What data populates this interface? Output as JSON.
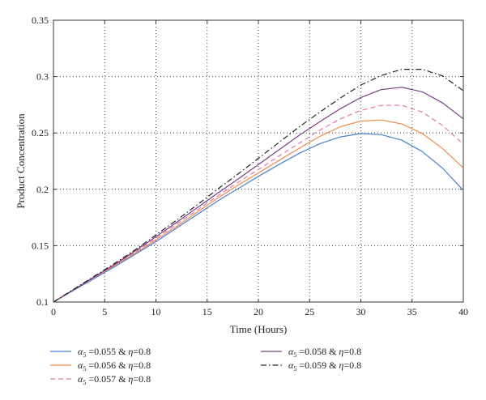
{
  "chart_data": {
    "type": "line",
    "title": "",
    "xlabel": "Time (Hours)",
    "ylabel": "Product Concentration",
    "xlim": [
      0,
      40
    ],
    "ylim": [
      0.1,
      0.35
    ],
    "xticks": [
      0,
      5,
      10,
      15,
      20,
      25,
      30,
      35,
      40
    ],
    "yticks": [
      0.1,
      0.15,
      0.2,
      0.25,
      0.3,
      0.35
    ],
    "xtick_labels": [
      "0",
      "5",
      "10",
      "15",
      "20",
      "25",
      "30",
      "35",
      "40"
    ],
    "ytick_labels": [
      "0.1",
      "0.15",
      "0.2",
      "0.25",
      "0.3",
      "0.35"
    ],
    "grid": true,
    "legend_position": "bottom",
    "series": [
      {
        "name": "α5 =0.055 & η=0.8",
        "legend": {
          "var": "α",
          "sub": "5",
          "rest": " =0.055 & ",
          "eta": "η",
          "eta_rest": "=0.8"
        },
        "color": "#4a80d0",
        "dash": "solid",
        "x": [
          0,
          2,
          4,
          6,
          8,
          10,
          12,
          14,
          16,
          18,
          20,
          22,
          24,
          26,
          28,
          30,
          32,
          34,
          36,
          38,
          40
        ],
        "y": [
          0.1,
          0.1105,
          0.121,
          0.1315,
          0.1425,
          0.1535,
          0.1655,
          0.1775,
          0.1895,
          0.2005,
          0.2115,
          0.222,
          0.232,
          0.2405,
          0.2465,
          0.2495,
          0.2485,
          0.2435,
          0.2335,
          0.2185,
          0.199
        ]
      },
      {
        "name": "α5 =0.056 & η=0.8",
        "legend": {
          "var": "α",
          "sub": "5",
          "rest": " =0.056 & ",
          "eta": "η",
          "eta_rest": "=0.8"
        },
        "color": "#f08a4b",
        "dash": "solid",
        "x": [
          0,
          2,
          4,
          6,
          8,
          10,
          12,
          14,
          16,
          18,
          20,
          22,
          24,
          26,
          28,
          30,
          32,
          34,
          36,
          38,
          40
        ],
        "y": [
          0.1,
          0.111,
          0.122,
          0.1325,
          0.1435,
          0.155,
          0.167,
          0.1795,
          0.192,
          0.2035,
          0.2145,
          0.2255,
          0.2365,
          0.247,
          0.2555,
          0.2605,
          0.2615,
          0.258,
          0.2495,
          0.236,
          0.219
        ]
      },
      {
        "name": "α5 =0.057 & η=0.8",
        "legend": {
          "var": "α",
          "sub": "5",
          "rest": " =0.057 & ",
          "eta": "η",
          "eta_rest": "=0.8"
        },
        "color": "#e07aa8",
        "dash": "dashed",
        "x": [
          0,
          2,
          4,
          6,
          8,
          10,
          12,
          14,
          16,
          18,
          20,
          22,
          24,
          26,
          28,
          30,
          32,
          34,
          36,
          38,
          40
        ],
        "y": [
          0.1,
          0.111,
          0.122,
          0.133,
          0.1445,
          0.1565,
          0.169,
          0.1815,
          0.194,
          0.206,
          0.2175,
          0.2295,
          0.241,
          0.2525,
          0.2625,
          0.27,
          0.2745,
          0.2745,
          0.2685,
          0.2565,
          0.24
        ]
      },
      {
        "name": "α5 =0.058 & η=0.8",
        "legend": {
          "var": "α",
          "sub": "5",
          "rest": " =0.058 & ",
          "eta": "η",
          "eta_rest": "=0.8"
        },
        "color": "#7b3e87",
        "dash": "solid",
        "x": [
          0,
          2,
          4,
          6,
          8,
          10,
          12,
          14,
          16,
          18,
          20,
          22,
          24,
          26,
          28,
          30,
          32,
          34,
          36,
          38,
          40
        ],
        "y": [
          0.1,
          0.111,
          0.1225,
          0.1335,
          0.1455,
          0.158,
          0.1705,
          0.1835,
          0.1965,
          0.209,
          0.222,
          0.235,
          0.248,
          0.26,
          0.2715,
          0.2815,
          0.2885,
          0.2905,
          0.2865,
          0.2765,
          0.2625
        ]
      },
      {
        "name": "α5 =0.059 & η=0.8",
        "legend": {
          "var": "α",
          "sub": "5",
          "rest": " =0.059 & ",
          "eta": "η",
          "eta_rest": "=0.8"
        },
        "color": "#222222",
        "dash": "dashdot",
        "x": [
          0,
          2,
          4,
          6,
          8,
          10,
          12,
          14,
          16,
          18,
          20,
          22,
          24,
          26,
          28,
          30,
          32,
          34,
          36,
          38,
          40
        ],
        "y": [
          0.1,
          0.1115,
          0.123,
          0.1345,
          0.1465,
          0.1595,
          0.1725,
          0.186,
          0.2,
          0.2135,
          0.2275,
          0.2415,
          0.2555,
          0.2685,
          0.281,
          0.2925,
          0.301,
          0.3065,
          0.3065,
          0.3005,
          0.2875
        ]
      }
    ]
  }
}
